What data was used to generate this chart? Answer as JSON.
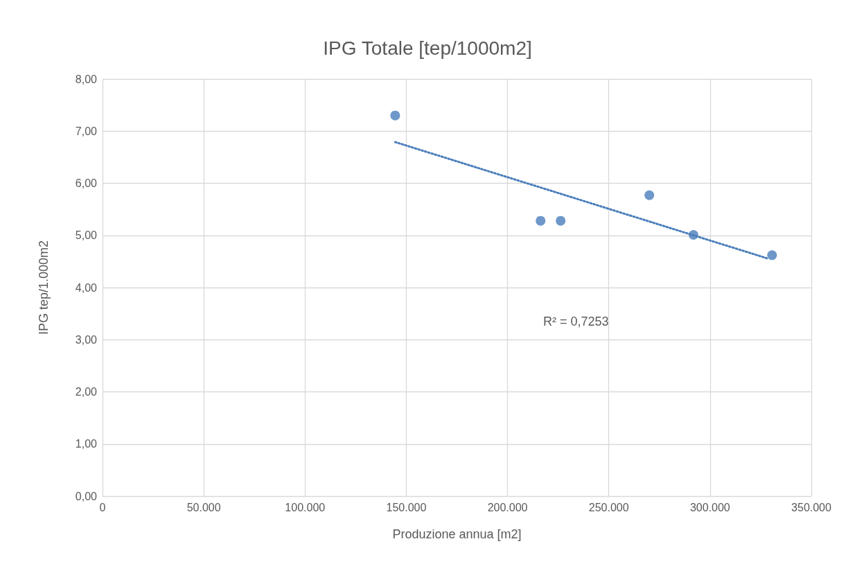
{
  "chart_data": {
    "type": "scatter",
    "title": "IPG Totale [tep/1000m2]",
    "xlabel": "Produzione annua [m2]",
    "ylabel": "IPG tep/1.000m2",
    "annotations": [
      "R² = 0,7253"
    ],
    "series": [
      {
        "color": "#4a7ebb",
        "x": [
          144500,
          216300,
          226200,
          270000,
          291800,
          330600
        ],
        "values": [
          7.3,
          5.28,
          5.28,
          5.77,
          5.01,
          4.62
        ]
      },
      {
        "type": "line",
        "color": "#4a7ebb",
        "line_style": "dotted",
        "marker": "none",
        "x": [
          144500,
          328200
        ],
        "values": [
          6.79,
          4.56
        ]
      }
    ],
    "xlim": [
      0,
      350000
    ],
    "xticks": [
      0,
      {
        "value": 50000,
        "label": "50.000"
      },
      {
        "value": 100000,
        "label": "100.000"
      },
      {
        "value": 150000,
        "label": "150.000"
      },
      {
        "value": 200000,
        "label": "200.000"
      },
      {
        "value": 250000,
        "label": "250.000"
      },
      {
        "value": 300000,
        "label": "300.000"
      },
      {
        "value": 350000,
        "label": "350.000"
      }
    ],
    "ylim": [
      0,
      8
    ],
    "yticks": [
      {
        "value": 0,
        "label": "0,00"
      },
      {
        "value": 1,
        "label": "1,00"
      },
      {
        "value": 2,
        "label": "2,00"
      },
      {
        "value": 3,
        "label": "3,00"
      },
      {
        "value": 4,
        "label": "4,00"
      },
      {
        "value": 5,
        "label": "5,00"
      },
      {
        "value": 6,
        "label": "6,00"
      },
      {
        "value": 7,
        "label": "7,00"
      },
      {
        "value": 8,
        "label": "8,00"
      }
    ],
    "grid": true,
    "marker": "circle"
  }
}
